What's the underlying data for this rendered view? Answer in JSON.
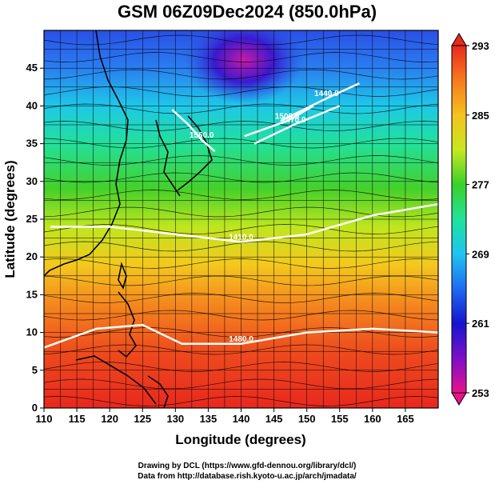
{
  "title": "GSM 06Z09Dec2024 (850.0hPa)",
  "xlabel": "Longitude (degrees)",
  "ylabel": "Latitude  (degrees)",
  "credits": [
    "Drawing by DCL (https://www.gfd-dennou.org/library/dcl/)",
    "Data from http://database.rish.kyoto-u.ac.jp/arch/jmadata/"
  ],
  "chart_data": {
    "type": "heatmap",
    "title": "GSM 06Z09Dec2024 (850.0hPa)",
    "xlabel": "Longitude (degrees)",
    "ylabel": "Latitude  (degrees)",
    "xlim": [
      110,
      170
    ],
    "ylim": [
      0,
      50
    ],
    "xticks": [
      110,
      115,
      120,
      125,
      130,
      135,
      140,
      145,
      150,
      155,
      160,
      165
    ],
    "yticks": [
      0,
      5,
      10,
      15,
      20,
      25,
      30,
      35,
      40,
      45
    ],
    "grid": true,
    "colorbar": {
      "min": 253,
      "max": 293,
      "labels": [
        293,
        285,
        277,
        269,
        261,
        253
      ],
      "colors": [
        "#e8128c",
        "#7d10c8",
        "#1515cf",
        "#1e6cf0",
        "#1fc5f0",
        "#1fe39a",
        "#3ad12a",
        "#c6e81e",
        "#f5c21e",
        "#f57a1e",
        "#e82a1e"
      ]
    },
    "contours": [
      {
        "label": "1560.0",
        "points": [
          [
            129.5,
            39.5
          ],
          [
            132,
            37.5
          ],
          [
            134,
            35.5
          ],
          [
            136,
            34
          ]
        ]
      },
      {
        "label": "1500.0",
        "points": [
          [
            140.5,
            36
          ],
          [
            147,
            38
          ],
          [
            151,
            40
          ]
        ]
      },
      {
        "label": "1470.0",
        "points": [
          [
            142,
            35
          ],
          [
            148,
            37.5
          ],
          [
            155,
            40
          ]
        ]
      },
      {
        "label": "1440.0",
        "points": [
          [
            146,
            38
          ],
          [
            153,
            41
          ],
          [
            158,
            43
          ]
        ]
      },
      {
        "label": "1410.0",
        "points": [
          [
            111,
            24
          ],
          [
            120,
            24
          ],
          [
            130,
            23
          ],
          [
            140,
            22
          ],
          [
            150,
            23
          ],
          [
            160,
            25.5
          ],
          [
            170,
            27
          ]
        ]
      },
      {
        "label": "1480.0",
        "points": [
          [
            110,
            8
          ],
          [
            118,
            10.5
          ],
          [
            125,
            11
          ],
          [
            131,
            8.5
          ],
          [
            140,
            8.5
          ],
          [
            150,
            10
          ],
          [
            160,
            10.5
          ],
          [
            170,
            10
          ]
        ]
      }
    ]
  }
}
